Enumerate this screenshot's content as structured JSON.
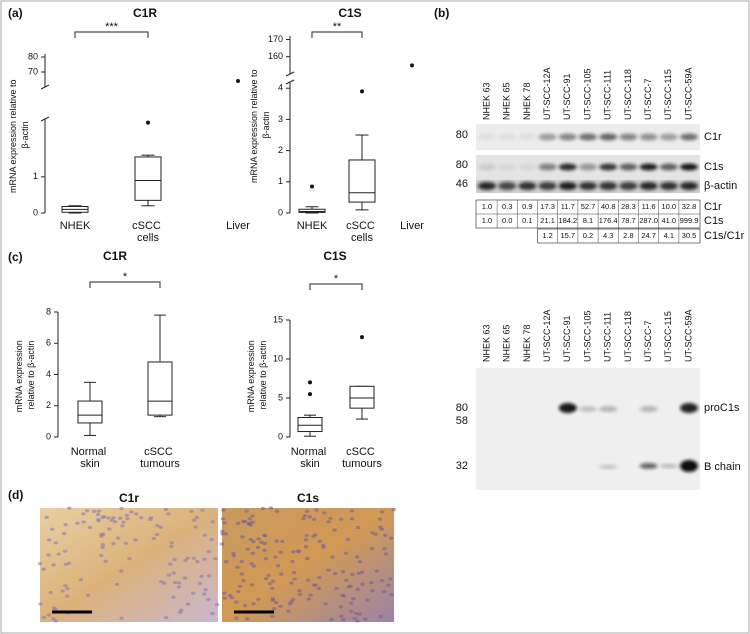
{
  "panels": {
    "a": "(a)",
    "b": "(b)",
    "c": "(c)",
    "d": "(d)"
  },
  "chart_data": [
    {
      "type": "box",
      "title": "C1R",
      "y_label": "mRNA expression relative to β-actin",
      "significance": "***",
      "categories": [
        "NHEK",
        "cSCC cells",
        "Liver"
      ],
      "boxes": [
        {
          "min": 0,
          "q1": 0.02,
          "median": 0.1,
          "q3": 0.18,
          "max": 0.2
        },
        {
          "min": 0.2,
          "q1": 0.35,
          "median": 0.9,
          "q3": 1.55,
          "max": 1.6,
          "outliers": [
            2.5
          ]
        },
        {
          "outliers": [
            64
          ]
        }
      ],
      "ylim": [
        0,
        82
      ],
      "y_break": [
        2.6,
        60
      ],
      "yticks": [
        0,
        1,
        70,
        80
      ]
    },
    {
      "type": "box",
      "title": "C1S",
      "y_label": "mRNA expression relative to β-actin",
      "significance": "**",
      "categories": [
        "NHEK",
        "cSCC cells",
        "Liver"
      ],
      "boxes": [
        {
          "min": 0,
          "q1": 0.02,
          "median": 0.05,
          "q3": 0.12,
          "max": 0.2,
          "outliers": [
            0.85
          ]
        },
        {
          "min": 0.1,
          "q1": 0.35,
          "median": 0.65,
          "q3": 1.7,
          "max": 2.5,
          "outliers": [
            3.9
          ]
        },
        {
          "outliers": [
            155
          ]
        }
      ],
      "ylim": [
        0,
        172
      ],
      "y_break": [
        4.2,
        150
      ],
      "yticks": [
        0,
        1,
        2,
        3,
        4,
        160,
        170
      ]
    },
    {
      "type": "box",
      "title": "C1R",
      "y_label": "mRNA expression relative to β-actin",
      "significance": "*",
      "categories": [
        "Normal skin",
        "cSCC tumours"
      ],
      "boxes": [
        {
          "min": 0.1,
          "q1": 0.9,
          "median": 1.4,
          "q3": 2.3,
          "max": 3.5
        },
        {
          "min": 1.3,
          "q1": 1.4,
          "median": 2.3,
          "q3": 4.8,
          "max": 7.8
        }
      ],
      "ylim": [
        0,
        8
      ],
      "yticks": [
        0,
        2,
        4,
        6,
        8
      ]
    },
    {
      "type": "box",
      "title": "C1S",
      "y_label": "mRNA expression relative to β-actin",
      "significance": "*",
      "categories": [
        "Normal skin",
        "cSCC tumours"
      ],
      "boxes": [
        {
          "min": 0.1,
          "q1": 0.7,
          "median": 1.5,
          "q3": 2.5,
          "max": 2.8,
          "outliers": [
            5.5,
            7
          ]
        },
        {
          "min": 2.3,
          "q1": 3.7,
          "median": 5,
          "q3": 6.5,
          "max": 6.5,
          "outliers": [
            12.8
          ]
        }
      ],
      "ylim": [
        0,
        15
      ],
      "yticks": [
        0,
        5,
        10,
        15
      ]
    }
  ],
  "blot": {
    "lanes": [
      "NHEK 63",
      "NHEK 65",
      "NHEK 78",
      "UT-SCC-12A",
      "UT-SCC-91",
      "UT-SCC-105",
      "UT-SCC-111",
      "UT-SCC-118",
      "UT-SCC-7",
      "UT-SCC-115",
      "UT-SCC-59A"
    ],
    "upper": {
      "markers": [
        80,
        80,
        46
      ],
      "bands": [
        "C1r",
        "C1s",
        "β-actin"
      ]
    },
    "table": [
      {
        "label": "C1r",
        "cells": [
          "1.0",
          "0.3",
          "0.9",
          "17.3",
          "11.7",
          "52.7",
          "40.8",
          "28.3",
          "11.6",
          "10.0",
          "32.8"
        ]
      },
      {
        "label": "C1s",
        "cells": [
          "1.0",
          "0.0",
          "0.1",
          "21.1",
          "184.2",
          "8.1",
          "176.4",
          "78.7",
          "287.0",
          "41.0",
          "999.9"
        ]
      },
      {
        "label": "C1s/C1r",
        "cells": [
          "1.2",
          "15.7",
          "0.2",
          "4.3",
          "2.8",
          "24.7",
          "4.1",
          "30.5"
        ]
      }
    ],
    "lower": {
      "markers": [
        80,
        58,
        32
      ],
      "bands": [
        "proC1s",
        "B chain"
      ]
    }
  },
  "histology": {
    "images": [
      {
        "title": "C1r"
      },
      {
        "title": "C1s"
      }
    ]
  }
}
